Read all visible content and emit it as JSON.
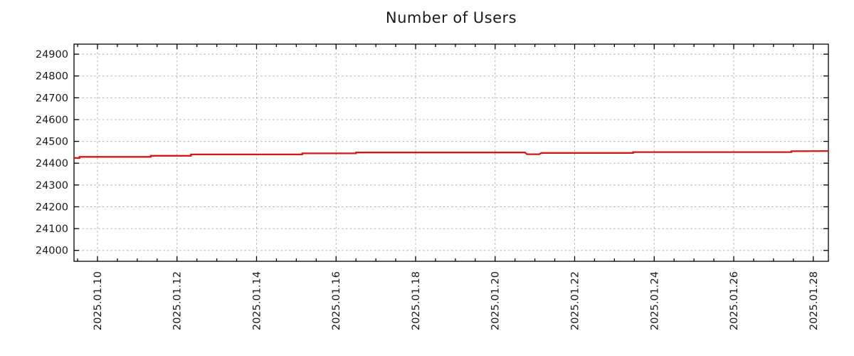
{
  "chart_data": {
    "type": "line",
    "title": "Number of Users",
    "xlabel": "",
    "ylabel": "",
    "legend": {
      "show": false
    },
    "grid": {
      "show": true,
      "style": "dashed"
    },
    "x_axis": {
      "kind": "date",
      "xlim_days": [
        9.41,
        28.38
      ],
      "minor_tick_step_days": 0.5,
      "major_ticks": [
        {
          "day": 10,
          "label": "2025.01.10"
        },
        {
          "day": 12,
          "label": "2025.01.12"
        },
        {
          "day": 14,
          "label": "2025.01.14"
        },
        {
          "day": 16,
          "label": "2025.01.16"
        },
        {
          "day": 18,
          "label": "2025.01.18"
        },
        {
          "day": 20,
          "label": "2025.01.20"
        },
        {
          "day": 22,
          "label": "2025.01.22"
        },
        {
          "day": 24,
          "label": "2025.01.24"
        },
        {
          "day": 26,
          "label": "2025.01.26"
        },
        {
          "day": 28,
          "label": "2025.01.28"
        }
      ]
    },
    "y_axis": {
      "ylim": [
        23950,
        24946
      ],
      "ticks": [
        24000,
        24100,
        24200,
        24300,
        24400,
        24500,
        24600,
        24700,
        24800,
        24900
      ]
    },
    "series": [
      {
        "name": "Number of Users",
        "color": "#d01818",
        "points": [
          [
            9.41,
            24424
          ],
          [
            9.55,
            24424
          ],
          [
            9.55,
            24429
          ],
          [
            11.34,
            24429
          ],
          [
            11.34,
            24434
          ],
          [
            12.35,
            24434
          ],
          [
            12.35,
            24440
          ],
          [
            15.15,
            24440
          ],
          [
            15.15,
            24445
          ],
          [
            16.5,
            24445
          ],
          [
            16.5,
            24449
          ],
          [
            20.75,
            24449
          ],
          [
            20.8,
            24441
          ],
          [
            21.11,
            24441
          ],
          [
            21.16,
            24447
          ],
          [
            23.47,
            24447
          ],
          [
            23.47,
            24451
          ],
          [
            27.45,
            24451
          ],
          [
            27.45,
            24455
          ],
          [
            28.38,
            24456
          ]
        ]
      }
    ],
    "colors": {
      "line": "#d01818",
      "grid": "#b0b0b0",
      "axis": "#000000",
      "text": "#1a1a1a",
      "background": "#ffffff"
    }
  }
}
